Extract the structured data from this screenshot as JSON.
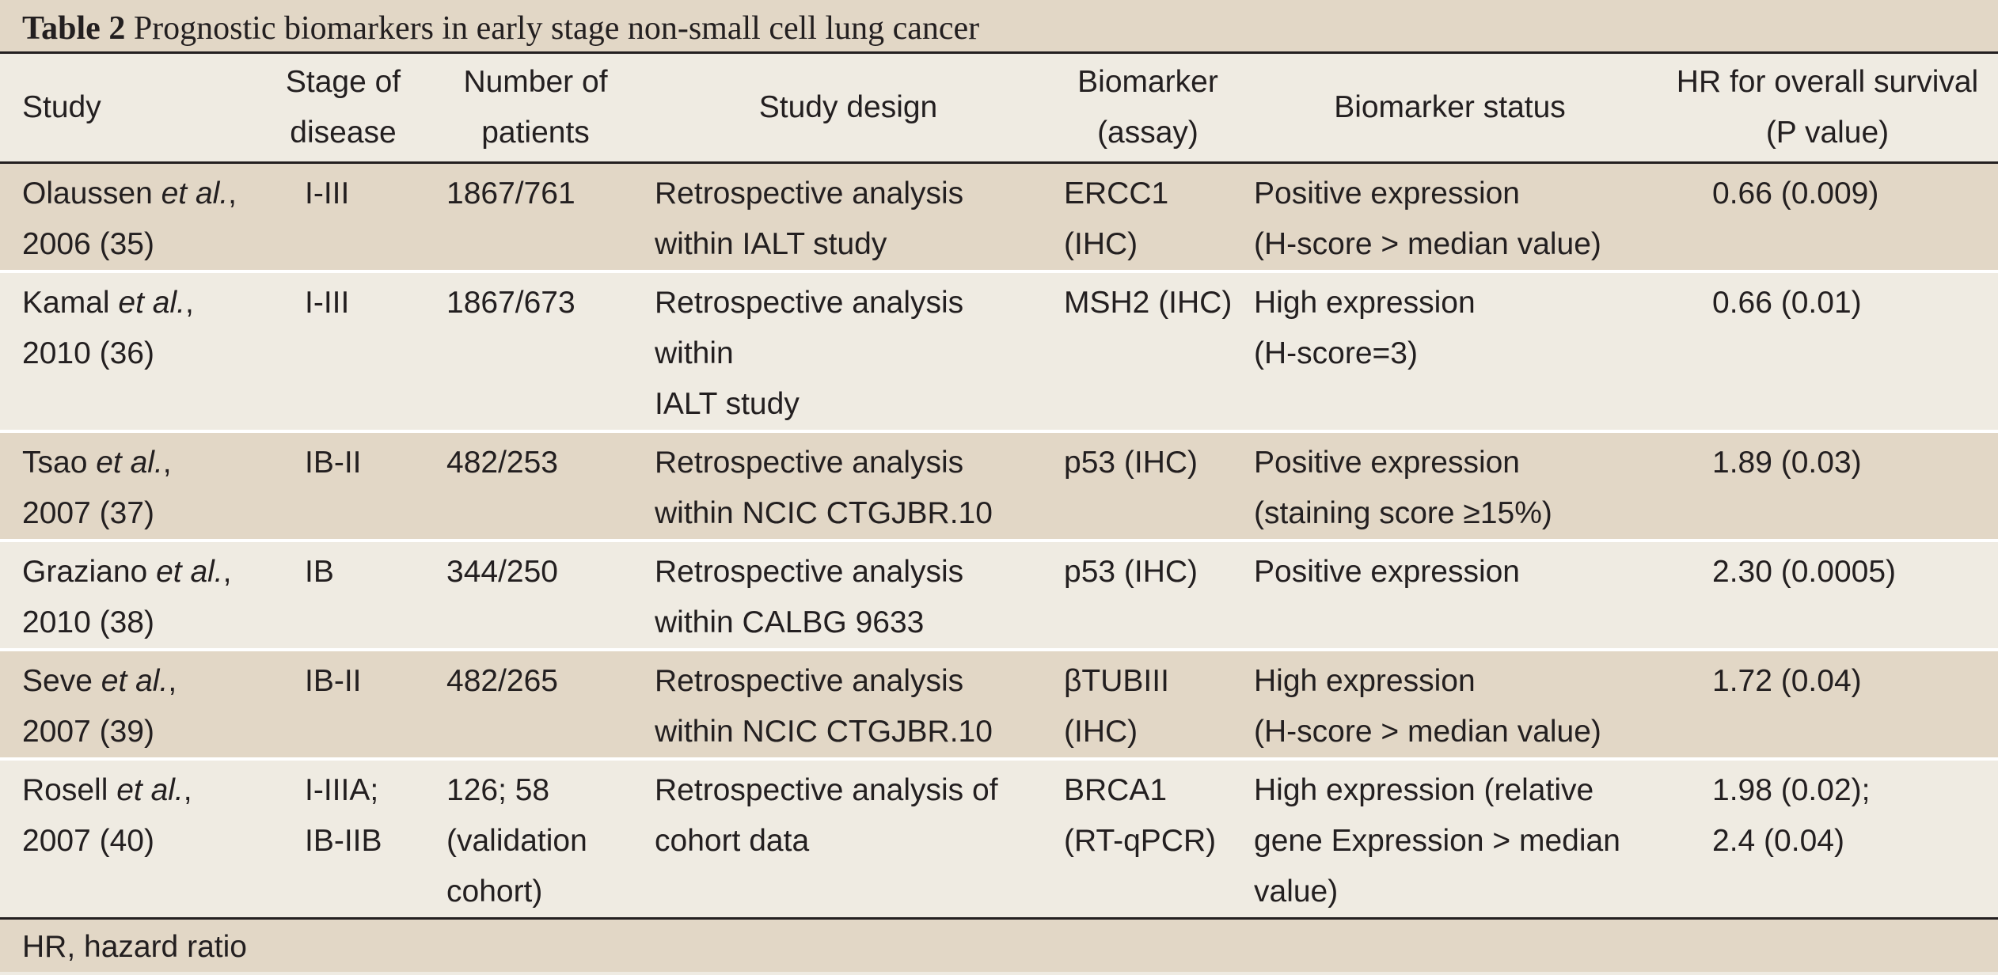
{
  "caption": {
    "label": "Table 2",
    "title": "Prognostic biomarkers in early stage non-small cell lung cancer"
  },
  "headers": [
    "Study",
    "Stage of\ndisease",
    "Number of\npatients",
    "Study design",
    "Biomarker\n(assay)",
    "Biomarker status",
    "HR for overall survival\n(P value)"
  ],
  "rows": [
    {
      "author": "Olaussen",
      "etal": "et al.",
      "year_ref": ", \n2006 (35)",
      "stage": "I-III",
      "patients": "1867/761",
      "design": "Retrospective analysis\nwithin IALT study",
      "biomarker": "ERCC1\n(IHC)",
      "status": "Positive expression\n(H-score > median value)",
      "hr": "0.66 (0.009)"
    },
    {
      "author": "Kamal",
      "etal": "et al.",
      "year_ref": ",\n2010 (36)",
      "stage": "I-III",
      "patients": "1867/673",
      "design": "Retrospective analysis\nwithin\nIALT study",
      "biomarker": "MSH2 (IHC)",
      "status": "High expression\n(H-score=3)",
      "hr": "0.66 (0.01)"
    },
    {
      "author": "Tsao",
      "etal": "et al.",
      "year_ref": ",\n2007 (37)",
      "stage": "IB-II",
      "patients": "482/253",
      "design": "Retrospective analysis\nwithin NCIC CTGJBR.10",
      "biomarker": "p53 (IHC)",
      "status": "Positive expression\n(staining score ≥15%)",
      "hr": "1.89 (0.03)"
    },
    {
      "author": "Graziano",
      "etal": "et al.",
      "year_ref": ",\n2010 (38)",
      "stage": "IB",
      "patients": "344/250",
      "design": "Retrospective analysis\nwithin CALBG 9633",
      "biomarker": "p53 (IHC)",
      "status": "Positive expression",
      "hr": "2.30 (0.0005)"
    },
    {
      "author": "Seve",
      "etal": "et al.",
      "year_ref": ",\n2007 (39)",
      "stage": "IB-II",
      "patients": "482/265",
      "design": "Retrospective analysis\nwithin NCIC CTGJBR.10",
      "biomarker": "βTUBIII\n(IHC)",
      "status": "High expression\n(H-score > median value)",
      "hr": "1.72 (0.04)"
    },
    {
      "author": "Rosell",
      "etal": "et al.",
      "year_ref": ",\n2007 (40)",
      "stage": "I-IIIA;\nIB-IIB",
      "patients": "126; 58\n(validation\ncohort)",
      "design": "Retrospective analysis of\ncohort data",
      "biomarker": "BRCA1\n(RT-qPCR)",
      "status": "High expression (relative\ngene Expression > median\nvalue)",
      "hr": "1.98 (0.02);\n2.4 (0.04)"
    }
  ],
  "footnote": "HR, hazard ratio",
  "colors": {
    "shade": "#e2d7c6",
    "light": "#efebe2",
    "rule": "#231f20"
  }
}
